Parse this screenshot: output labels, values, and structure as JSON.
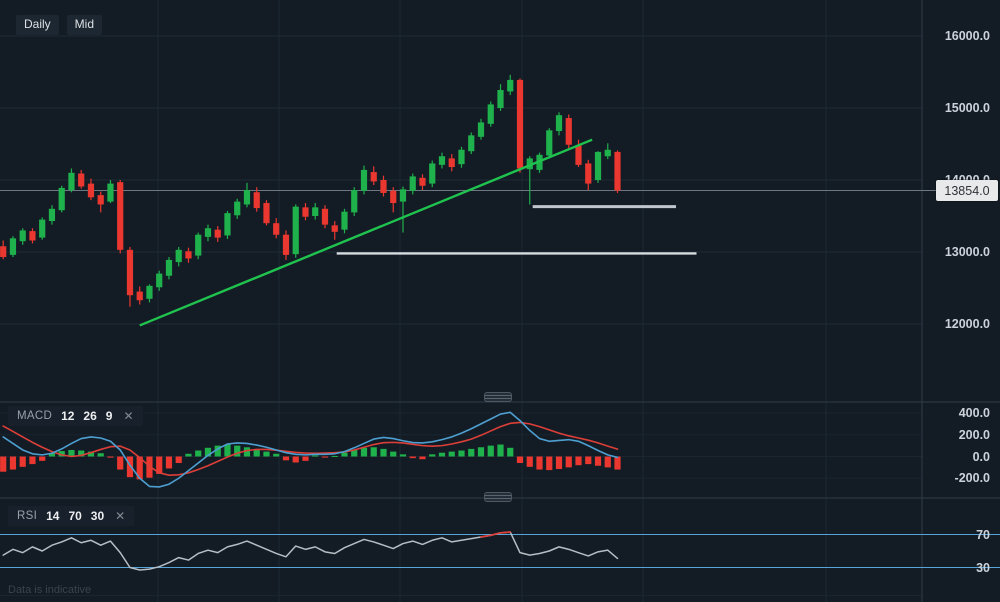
{
  "toolbar": {
    "buttons": [
      {
        "label": "Daily"
      },
      {
        "label": "Mid"
      }
    ]
  },
  "footnote": "Data is indicative",
  "price_axis": {
    "ticks": [
      {
        "label": "16000.0",
        "value": 16000
      },
      {
        "label": "15000.0",
        "value": 15000
      },
      {
        "label": "14000.0",
        "value": 14000
      },
      {
        "label": "13000.0",
        "value": 13000
      },
      {
        "label": "12000.0",
        "value": 12000
      }
    ],
    "current_price": 13854.0,
    "current_price_label": "13854.0"
  },
  "indicators": {
    "macd": {
      "title": "MACD",
      "params": [
        "12",
        "26",
        "9"
      ],
      "close_label": "✕",
      "ticks": [
        {
          "label": "400.0",
          "value": 400
        },
        {
          "label": "200.0",
          "value": 200
        },
        {
          "label": "0.0",
          "value": 0
        },
        {
          "label": "-200.0",
          "value": -200
        }
      ]
    },
    "rsi": {
      "title": "RSI",
      "params": [
        "14",
        "70",
        "30"
      ],
      "close_label": "✕",
      "ticks": [
        {
          "label": "70",
          "value": 70
        },
        {
          "label": "30",
          "value": 30
        }
      ]
    }
  },
  "colors": {
    "background": "#131c25",
    "up": "#1fb14c",
    "down": "#ea372f",
    "trend_line": "#1fc34e",
    "support_line_1": "#c0c6cd",
    "support_line_2": "#d7dce1",
    "price_line": "#6e7884",
    "macd_line": "#4e9fd1",
    "signal_line": "#dd3f38",
    "rsi_line": "#b7bdc4",
    "rsi_level": "#57a5d8",
    "grid": "#1f2a36",
    "separator": "#2f3b48"
  },
  "chart_data": {
    "type": "candlestick",
    "timeframe": "Daily",
    "price_mode": "Mid",
    "price_ticks": [
      16000,
      15000,
      14000,
      13000,
      12000
    ],
    "current_price": 13854.0,
    "candles_ohlc": [
      [
        13080,
        13160,
        12900,
        12930
      ],
      [
        12960,
        13220,
        12930,
        13190
      ],
      [
        13150,
        13330,
        13100,
        13300
      ],
      [
        13290,
        13330,
        13120,
        13160
      ],
      [
        13200,
        13480,
        13170,
        13450
      ],
      [
        13430,
        13650,
        13380,
        13600
      ],
      [
        13580,
        13920,
        13550,
        13890
      ],
      [
        13860,
        14160,
        13830,
        14100
      ],
      [
        14090,
        14140,
        13880,
        13910
      ],
      [
        13950,
        14020,
        13720,
        13760
      ],
      [
        13790,
        13840,
        13550,
        13660
      ],
      [
        13700,
        14000,
        13680,
        13950
      ],
      [
        13970,
        14000,
        12980,
        13030
      ],
      [
        13030,
        13070,
        12240,
        12400
      ],
      [
        12450,
        12520,
        12270,
        12330
      ],
      [
        12350,
        12550,
        12300,
        12530
      ],
      [
        12510,
        12740,
        12460,
        12700
      ],
      [
        12670,
        12930,
        12620,
        12890
      ],
      [
        12860,
        13070,
        12800,
        13030
      ],
      [
        13010,
        13060,
        12850,
        12910
      ],
      [
        12950,
        13270,
        12900,
        13240
      ],
      [
        13210,
        13380,
        13150,
        13330
      ],
      [
        13310,
        13360,
        13140,
        13200
      ],
      [
        13230,
        13570,
        13180,
        13540
      ],
      [
        13510,
        13740,
        13460,
        13700
      ],
      [
        13660,
        13960,
        13620,
        13860
      ],
      [
        13830,
        13900,
        13560,
        13610
      ],
      [
        13680,
        13720,
        13370,
        13400
      ],
      [
        13400,
        13470,
        13190,
        13240
      ],
      [
        13240,
        13300,
        12890,
        12960
      ],
      [
        12970,
        13660,
        12920,
        13630
      ],
      [
        13620,
        13680,
        13440,
        13490
      ],
      [
        13500,
        13680,
        13450,
        13620
      ],
      [
        13600,
        13650,
        13330,
        13380
      ],
      [
        13370,
        13430,
        13170,
        13280
      ],
      [
        13310,
        13600,
        13260,
        13560
      ],
      [
        13550,
        13900,
        13500,
        13860
      ],
      [
        13850,
        14200,
        13800,
        14140
      ],
      [
        14110,
        14190,
        13930,
        13980
      ],
      [
        14000,
        14060,
        13770,
        13820
      ],
      [
        13850,
        13900,
        13550,
        13680
      ],
      [
        13700,
        13910,
        13270,
        13870
      ],
      [
        13850,
        14090,
        13800,
        14050
      ],
      [
        14030,
        14080,
        13860,
        13920
      ],
      [
        13950,
        14270,
        13900,
        14230
      ],
      [
        14210,
        14380,
        14160,
        14330
      ],
      [
        14300,
        14360,
        14120,
        14180
      ],
      [
        14220,
        14460,
        14170,
        14420
      ],
      [
        14400,
        14660,
        14360,
        14620
      ],
      [
        14600,
        14850,
        14560,
        14800
      ],
      [
        14780,
        15090,
        14740,
        15050
      ],
      [
        15000,
        15330,
        14960,
        15250
      ],
      [
        15230,
        15460,
        15180,
        15390
      ],
      [
        15390,
        15410,
        14100,
        14160
      ],
      [
        14150,
        14330,
        13660,
        14300
      ],
      [
        14140,
        14380,
        14100,
        14350
      ],
      [
        14340,
        14720,
        14300,
        14690
      ],
      [
        14680,
        14940,
        14620,
        14900
      ],
      [
        14860,
        14910,
        14440,
        14490
      ],
      [
        14480,
        14560,
        14180,
        14210
      ],
      [
        14230,
        14280,
        13860,
        13950
      ],
      [
        14000,
        14400,
        13960,
        14390
      ],
      [
        14330,
        14510,
        14290,
        14420
      ],
      [
        14390,
        14410,
        13820,
        13854
      ]
    ],
    "trendline": {
      "from": {
        "index": 14,
        "price": 11980
      },
      "to": {
        "index": 60.4,
        "price": 14560
      }
    },
    "horizontal_lines": [
      {
        "price": 13630,
        "from_index": 54.3,
        "to_index": 69.0
      },
      {
        "price": 12980,
        "from_index": 34.2,
        "to_index": 71.1
      }
    ],
    "macd": {
      "fast": 12,
      "slow": 26,
      "signal": 9,
      "axis_ticks": [
        400,
        200,
        0,
        -200
      ],
      "histogram": [
        -140,
        -120,
        -95,
        -70,
        -40,
        30,
        50,
        60,
        55,
        45,
        30,
        -10,
        -120,
        -190,
        -210,
        -195,
        -160,
        -110,
        -60,
        25,
        55,
        80,
        100,
        110,
        100,
        85,
        65,
        45,
        25,
        -35,
        -55,
        -40,
        10,
        -10,
        5,
        35,
        60,
        80,
        85,
        70,
        45,
        20,
        -15,
        -25,
        20,
        35,
        45,
        55,
        70,
        85,
        100,
        110,
        80,
        -60,
        -95,
        -120,
        -125,
        -115,
        -100,
        -80,
        -70,
        -85,
        -100,
        -120
      ],
      "macd_line": [
        180,
        120,
        60,
        25,
        15,
        30,
        70,
        120,
        165,
        180,
        170,
        140,
        60,
        -80,
        -200,
        -275,
        -280,
        -255,
        -200,
        -130,
        -60,
        10,
        70,
        115,
        125,
        120,
        105,
        85,
        60,
        35,
        20,
        15,
        20,
        20,
        25,
        45,
        80,
        120,
        160,
        175,
        165,
        145,
        128,
        125,
        135,
        155,
        180,
        215,
        255,
        300,
        345,
        390,
        406,
        330,
        240,
        165,
        140,
        148,
        155,
        140,
        100,
        55,
        15,
        -8
      ],
      "signal_line": [
        280,
        230,
        180,
        130,
        85,
        45,
        15,
        0,
        10,
        35,
        65,
        90,
        95,
        60,
        -10,
        -90,
        -150,
        -172,
        -168,
        -150,
        -120,
        -85,
        -45,
        -5,
        30,
        55,
        65,
        65,
        58,
        48,
        38,
        32,
        30,
        32,
        35,
        42,
        60,
        85,
        110,
        127,
        130,
        125,
        112,
        100,
        95,
        100,
        115,
        135,
        160,
        195,
        235,
        275,
        305,
        313,
        300,
        275,
        245,
        215,
        190,
        170,
        150,
        125,
        95,
        68
      ]
    },
    "rsi": {
      "period": 14,
      "overbought": 70,
      "oversold": 30,
      "values": [
        45,
        52,
        48,
        55,
        50,
        57,
        61,
        66,
        60,
        63,
        57,
        62,
        48,
        30,
        27,
        28,
        31,
        36,
        42,
        39,
        47,
        51,
        48,
        55,
        58,
        62,
        57,
        52,
        47,
        43,
        56,
        52,
        55,
        49,
        47,
        54,
        59,
        64,
        61,
        57,
        53,
        59,
        62,
        58,
        63,
        66,
        61,
        63,
        65,
        67,
        69,
        72,
        73,
        48,
        45,
        47,
        50,
        55,
        52,
        48,
        44,
        49,
        51,
        41
      ],
      "overbought_segment_indices": [
        49,
        52
      ]
    }
  }
}
